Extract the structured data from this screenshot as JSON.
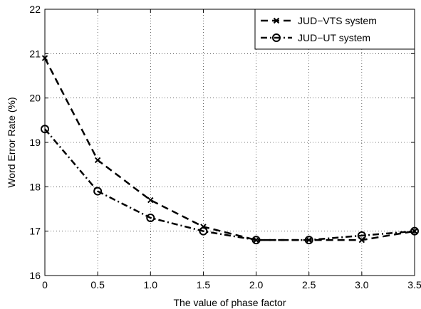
{
  "chart_data": {
    "type": "line",
    "title": "",
    "xlabel": "The value of phase factor",
    "ylabel": "Word Error Rate (%)",
    "xlim": [
      0,
      3.5
    ],
    "ylim": [
      16,
      22
    ],
    "x": [
      0,
      0.5,
      1.0,
      1.5,
      2.0,
      2.5,
      3.0,
      3.5
    ],
    "x_tick_labels": [
      "0",
      "0.5",
      "1.0",
      "1.5",
      "2.0",
      "2.5",
      "3.0",
      "3.5"
    ],
    "y_ticks": [
      16,
      17,
      18,
      19,
      20,
      21,
      22
    ],
    "y_tick_labels": [
      "16",
      "17",
      "18",
      "19",
      "20",
      "21",
      "22"
    ],
    "grid": true,
    "legend_position": "top-right",
    "series": [
      {
        "name": "JUD−VTS system",
        "values": [
          20.9,
          18.6,
          17.7,
          17.1,
          16.8,
          16.8,
          16.8,
          17.0
        ],
        "line_style": "dashed",
        "marker": "x",
        "color": "#000000"
      },
      {
        "name": "JUD−UT system",
        "values": [
          19.3,
          17.9,
          17.3,
          17.0,
          16.8,
          16.8,
          16.9,
          17.0
        ],
        "line_style": "dash-dot",
        "marker": "o",
        "color": "#000000"
      }
    ]
  }
}
